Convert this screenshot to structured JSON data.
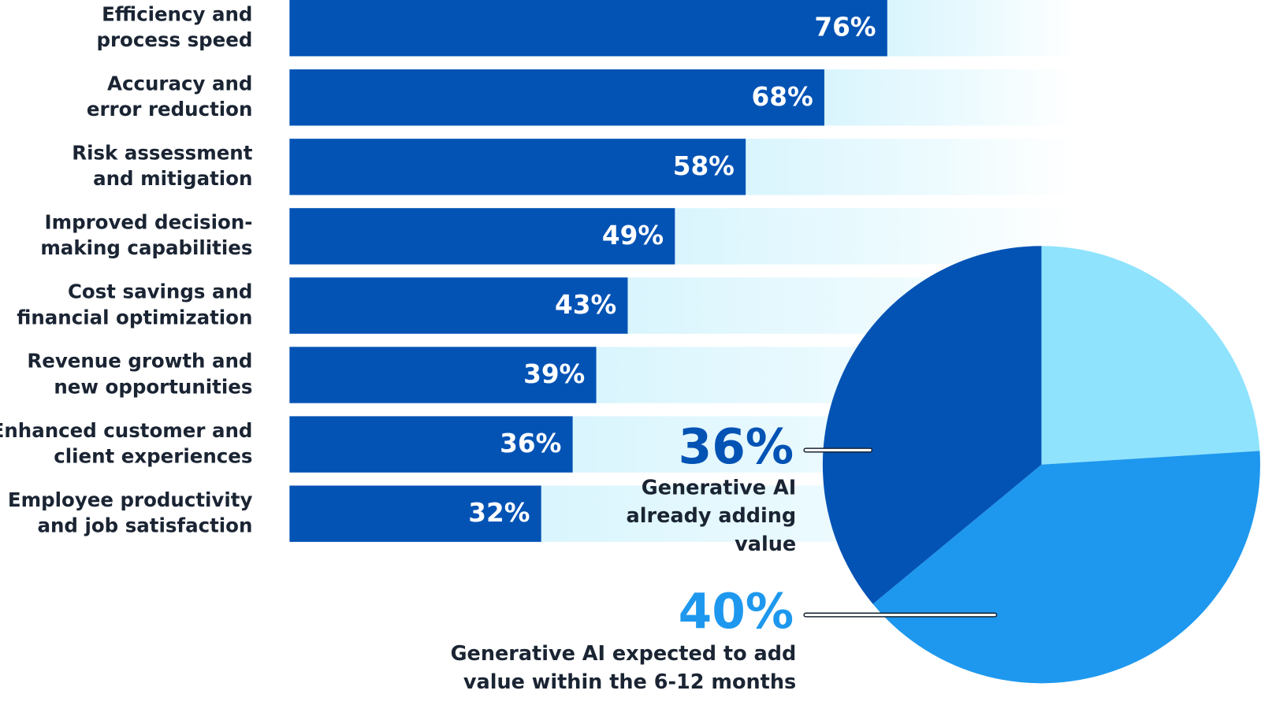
{
  "chart_data": [
    {
      "type": "bar",
      "orientation": "horizontal",
      "categories": [
        "Efficiency and\nprocess speed",
        "Accuracy and\nerror reduction",
        "Risk assessment\nand mitigation",
        "Improved decision-\nmaking capabilities",
        "Cost savings and\nfinancial optimization",
        "Revenue growth and\nnew opportunities",
        "Enhanced customer and\nclient experiences",
        "Employee productivity\nand job satisfaction"
      ],
      "values": [
        76,
        68,
        58,
        49,
        43,
        39,
        36,
        32
      ],
      "value_labels": [
        "76%",
        "68%",
        "58%",
        "49%",
        "43%",
        "39%",
        "36%",
        "32%"
      ],
      "color": "#0353b5",
      "track_color": "#d9f5fd",
      "xlim": [
        0,
        100
      ]
    },
    {
      "type": "pie",
      "categories": [
        null,
        "Generative AI expected to add\nvalue within the 6-12 months",
        "Generative AI\nalready adding\nvalue"
      ],
      "values": [
        24,
        40,
        36
      ],
      "value_labels": [
        null,
        "40%",
        "36%"
      ],
      "colors": [
        "#8fe3fd",
        "#1e98ee",
        "#0353b5"
      ]
    }
  ]
}
